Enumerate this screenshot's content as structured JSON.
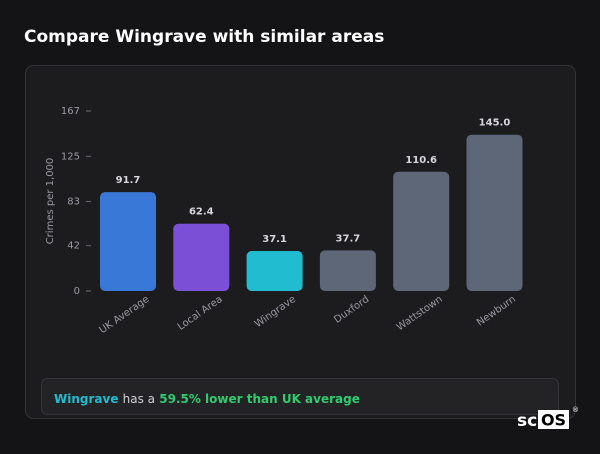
{
  "header": {
    "title": "Compare Wingrave with similar areas"
  },
  "chart_data": {
    "type": "bar",
    "y_label": "Crimes per 1,000",
    "categories": [
      "UK Average",
      "Local Area",
      "Wingrave",
      "Duxford",
      "Wattstown",
      "Newburn"
    ],
    "values": [
      91.7,
      62.4,
      37.1,
      37.7,
      110.6,
      145.0
    ],
    "value_labels": [
      "91.7",
      "62.4",
      "37.1",
      "37.7",
      "110.6",
      "145.0"
    ],
    "colors": [
      "#3a78d8",
      "#7b4fd6",
      "#22bcd0",
      "#5d6778",
      "#5d6778",
      "#5d6778"
    ],
    "ylim": [
      0,
      167
    ],
    "yticks": [
      0,
      42,
      83,
      125,
      167
    ],
    "grid": false
  },
  "summary": {
    "area": "Wingrave",
    "text": "has a",
    "highlight": "59.5% lower than UK average"
  },
  "logo": {
    "prefix": "sc",
    "boxed": "OS",
    "mark": "®"
  }
}
